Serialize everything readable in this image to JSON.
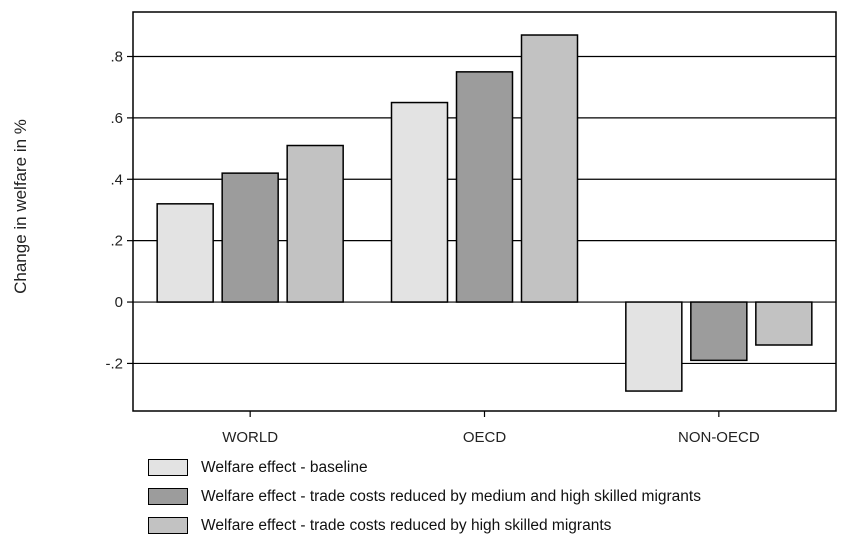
{
  "chart_data": {
    "type": "bar",
    "ylabel": "Change in welfare in %",
    "xlabel": "",
    "categories": [
      "WORLD",
      "OECD",
      "NON-OECD"
    ],
    "series": [
      {
        "name": "Welfare effect  - baseline",
        "color": "#e3e3e3",
        "values": [
          0.32,
          0.65,
          -0.29
        ]
      },
      {
        "name": "Welfare effect - trade costs reduced by medium and high skilled migrants",
        "color": "#9c9c9c",
        "values": [
          0.42,
          0.75,
          -0.19
        ]
      },
      {
        "name": "Welfare effect - trade costs reduced by high skilled migrants",
        "color": "#c2c2c2",
        "values": [
          0.51,
          0.87,
          -0.14
        ]
      }
    ],
    "yticks": [
      -0.2,
      0,
      0.2,
      0.4,
      0.6,
      0.8
    ],
    "ytick_labels": [
      "-.2",
      "0",
      ".2",
      ".4",
      ".6",
      ".8"
    ],
    "ylim": [
      -0.355,
      0.945
    ],
    "grid": true,
    "legend_position": "bottom-left"
  }
}
